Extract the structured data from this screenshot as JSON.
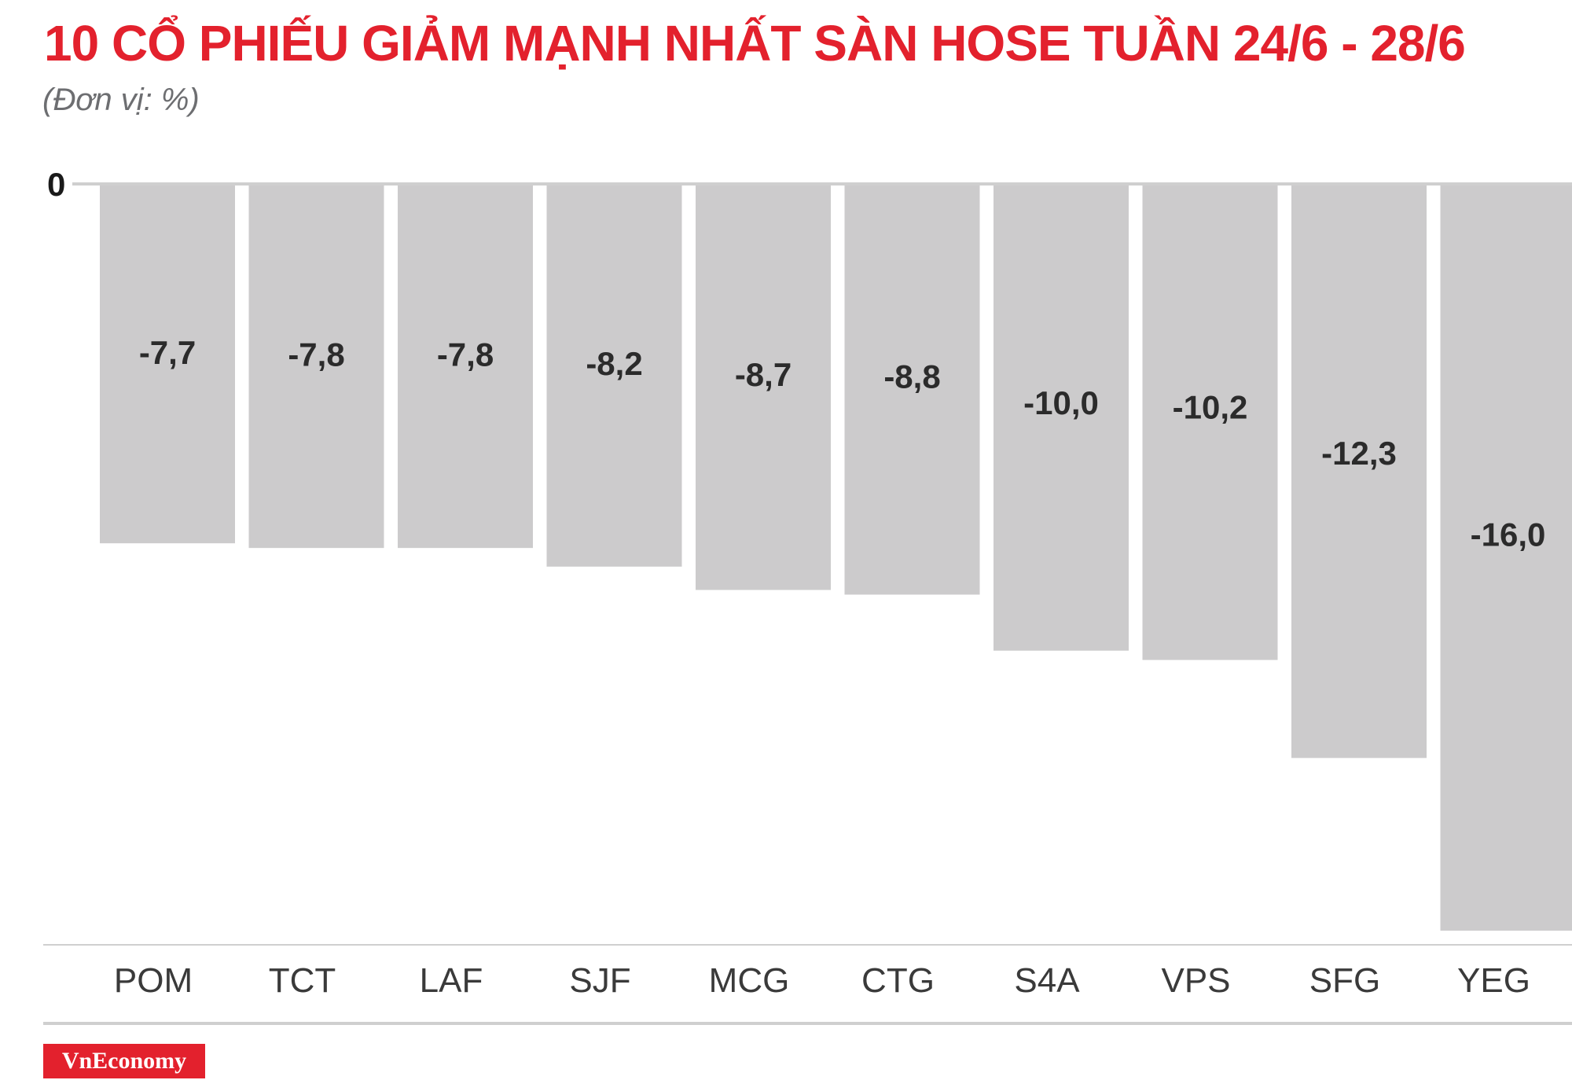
{
  "header": {
    "title": "10 CỔ PHIẾU GIẢM MẠNH NHẤT SÀN HOSE TUẦN 24/6 - 28/6",
    "subtitle": "(Đơn vị: %)"
  },
  "branding": {
    "logo_text": "VnEconomy"
  },
  "colors": {
    "title": "#e3212d",
    "bar": "#cccbcc",
    "axis": "#cfcfcf",
    "logo_bg": "#e3212d"
  },
  "chart_data": {
    "type": "bar",
    "orientation": "vertical",
    "categories": [
      "POM",
      "TCT",
      "LAF",
      "SJF",
      "MCG",
      "CTG",
      "S4A",
      "VPS",
      "SFG",
      "YEG"
    ],
    "values": [
      -7.7,
      -7.8,
      -7.8,
      -8.2,
      -8.7,
      -8.8,
      -10.0,
      -10.2,
      -12.3,
      -16.0
    ],
    "value_labels": [
      "-7,7",
      "-7,8",
      "-7,8",
      "-8,2",
      "-8,7",
      "-8,8",
      "-10,0",
      "-10,2",
      "-12,3",
      "-16,0"
    ],
    "zero_label": "0",
    "title": "10 CỔ PHIẾU GIẢM MẠNH NHẤT SÀN HOSE TUẦN 24/6 - 28/6",
    "ylabel": "(Đơn vị: %)",
    "ylim": [
      -16.0,
      0
    ],
    "grid": false,
    "legend": "none"
  }
}
